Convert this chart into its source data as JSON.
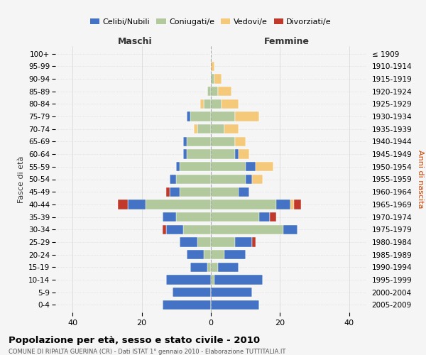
{
  "age_groups": [
    "100+",
    "95-99",
    "90-94",
    "85-89",
    "80-84",
    "75-79",
    "70-74",
    "65-69",
    "60-64",
    "55-59",
    "50-54",
    "45-49",
    "40-44",
    "35-39",
    "30-34",
    "25-29",
    "20-24",
    "15-19",
    "10-14",
    "5-9",
    "0-4"
  ],
  "birth_years": [
    "≤ 1909",
    "1910-1914",
    "1915-1919",
    "1920-1924",
    "1925-1929",
    "1930-1934",
    "1935-1939",
    "1940-1944",
    "1945-1949",
    "1950-1954",
    "1955-1959",
    "1960-1964",
    "1965-1969",
    "1970-1974",
    "1975-1979",
    "1980-1984",
    "1985-1989",
    "1990-1994",
    "1995-1999",
    "2000-2004",
    "2005-2009"
  ],
  "male": {
    "celibi": [
      0,
      0,
      0,
      0,
      0,
      1,
      0,
      1,
      1,
      1,
      2,
      3,
      5,
      4,
      5,
      5,
      5,
      5,
      13,
      11,
      14
    ],
    "coniugati": [
      0,
      0,
      0,
      1,
      2,
      6,
      4,
      7,
      7,
      9,
      10,
      9,
      19,
      10,
      8,
      4,
      2,
      1,
      0,
      0,
      0
    ],
    "vedovi": [
      0,
      0,
      0,
      0,
      1,
      0,
      1,
      0,
      0,
      0,
      0,
      0,
      0,
      0,
      0,
      0,
      0,
      0,
      0,
      0,
      0
    ],
    "divorziati": [
      0,
      0,
      0,
      0,
      0,
      0,
      0,
      0,
      0,
      0,
      0,
      1,
      3,
      0,
      1,
      0,
      0,
      0,
      0,
      0,
      0
    ]
  },
  "female": {
    "nubili": [
      0,
      0,
      0,
      0,
      0,
      0,
      0,
      0,
      1,
      3,
      2,
      3,
      4,
      3,
      4,
      5,
      6,
      6,
      14,
      12,
      14
    ],
    "coniugate": [
      0,
      0,
      1,
      2,
      3,
      7,
      4,
      7,
      7,
      10,
      10,
      8,
      19,
      14,
      21,
      7,
      4,
      2,
      1,
      0,
      0
    ],
    "vedove": [
      0,
      1,
      2,
      4,
      5,
      7,
      4,
      3,
      3,
      5,
      3,
      0,
      1,
      0,
      0,
      0,
      0,
      0,
      0,
      0,
      0
    ],
    "divorziate": [
      0,
      0,
      0,
      0,
      0,
      0,
      0,
      0,
      0,
      0,
      0,
      0,
      2,
      2,
      0,
      1,
      0,
      0,
      0,
      0,
      0
    ]
  },
  "colors": {
    "celibi": "#4472c4",
    "coniugati": "#b2c99d",
    "vedovi": "#f5c97a",
    "divorziati": "#c0392b"
  },
  "xlim": 45,
  "title": "Popolazione per età, sesso e stato civile - 2010",
  "subtitle": "COMUNE DI RIPALTA GUERINA (CR) - Dati ISTAT 1° gennaio 2010 - Elaborazione TUTTITALIA.IT",
  "ylabel_left": "Fasce di età",
  "ylabel_right": "Anni di nascita",
  "xlabel_left": "Maschi",
  "xlabel_right": "Femmine",
  "bg_color": "#f5f5f5",
  "grid_color": "#cccccc"
}
